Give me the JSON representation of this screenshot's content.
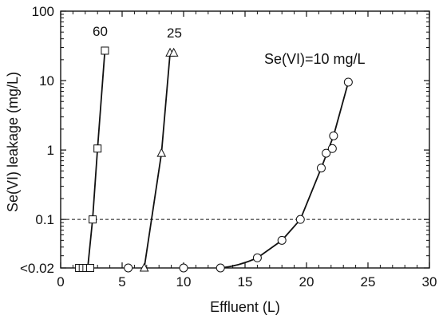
{
  "chart_data": {
    "type": "scatter",
    "xlabel": "Effluent  (L)",
    "ylabel": "Se(VI)  leakage  (mg/L)",
    "xlim": [
      0,
      30
    ],
    "ylim": [
      0.02,
      100
    ],
    "y_scale": "log",
    "x_ticks": [
      0,
      5,
      10,
      15,
      20,
      25,
      30
    ],
    "y_ticks": [
      {
        "value": 0.02,
        "label": "<0.02"
      },
      {
        "value": 0.1,
        "label": "0.1"
      },
      {
        "value": 1,
        "label": "1"
      },
      {
        "value": 10,
        "label": "10"
      },
      {
        "value": 100,
        "label": "100"
      }
    ],
    "annotation": "Se(VI)=10  mg/L",
    "reference_line": {
      "y": 0.1,
      "style": "dashed"
    },
    "grid": false,
    "series": [
      {
        "label": "60",
        "marker": "square",
        "x": [
          1.5,
          1.8,
          2.1,
          2.4,
          2.6,
          3.0,
          3.6
        ],
        "y": [
          0.02,
          0.02,
          0.02,
          0.02,
          0.1,
          1.05,
          27
        ]
      },
      {
        "label": "25",
        "marker": "triangle",
        "x": [
          6.8,
          8.2,
          8.9,
          9.2
        ],
        "y": [
          0.02,
          0.9,
          25,
          25
        ]
      },
      {
        "label": "",
        "marker": "circle",
        "x": [
          5.5,
          10,
          13,
          16,
          18,
          19.5,
          21.2,
          21.6,
          22.2,
          22.1,
          23.4
        ],
        "y": [
          0.02,
          0.02,
          0.02,
          0.028,
          0.05,
          0.1,
          0.55,
          0.9,
          1.6,
          1.05,
          9.5
        ]
      }
    ]
  }
}
